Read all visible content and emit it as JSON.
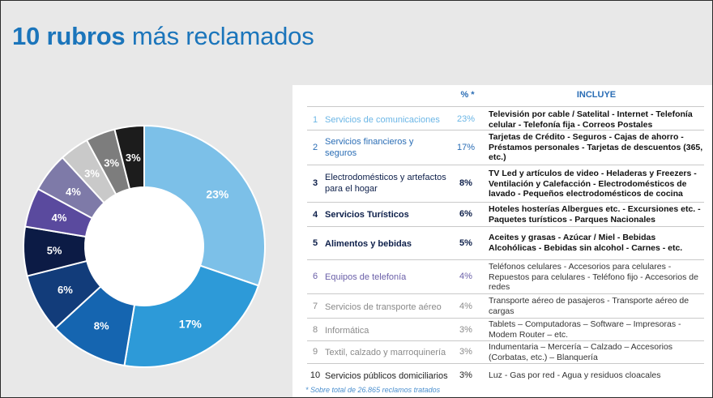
{
  "title": {
    "bold": "10 rubros",
    "rest": "más reclamados"
  },
  "table": {
    "col_pct": "% *",
    "col_incluye": "INCLUYE",
    "rows": [
      {
        "num": "1",
        "rubro": "Servicios de comunicaciones",
        "pct": "23%",
        "incluye": "Televisión por cable / Satelital - Internet - Telefonía celular - Telefonía fija - Correos Postales"
      },
      {
        "num": "2",
        "rubro": "Servicios financieros y seguros",
        "pct": "17%",
        "incluye": "Tarjetas de Crédito - Seguros - Cajas de ahorro - Préstamos personales - Tarjetas de descuentos (365, etc.)"
      },
      {
        "num": "3",
        "rubro": "Electrodomésticos y artefactos para el hogar",
        "pct": "8%",
        "incluye": "TV Led y artículos de video - Heladeras y Freezers - Ventilación y Calefacción - Electrodomésticos de lavado - Pequeños electrodomésticos de cocina"
      },
      {
        "num": "4",
        "rubro": "Servicios Turísticos",
        "pct": "6%",
        "incluye": "Hoteles hosterías Albergues etc. - Excursiones etc. - Paquetes turísticos - Parques Nacionales"
      },
      {
        "num": "5",
        "rubro": "Alimentos y bebidas",
        "pct": "5%",
        "incluye": "Aceites y grasas - Azúcar / Miel - Bebidas Alcohólicas - Bebidas sin alcohol - Carnes - etc."
      },
      {
        "num": "6",
        "rubro": "Equipos de telefonía",
        "pct": "4%",
        "incluye": "Teléfonos celulares - Accesorios para celulares - Repuestos para celulares - Teléfono fijo - Accesorios de redes"
      },
      {
        "num": "7",
        "rubro": "Servicios de transporte aéreo",
        "pct": "4%",
        "incluye": "Transporte aéreo de pasajeros - Transporte aéreo de cargas"
      },
      {
        "num": "8",
        "rubro": "Informática",
        "pct": "3%",
        "incluye": "Tablets – Computadoras – Software – Impresoras - Modem Router – etc."
      },
      {
        "num": "9",
        "rubro": "Textil, calzado y marroquinería",
        "pct": "3%",
        "incluye": "Indumentaria – Mercería – Calzado – Accesorios (Corbatas, etc.) – Blanquería"
      },
      {
        "num": "10",
        "rubro": "Servicios públicos domiciliarios",
        "pct": "3%",
        "incluye": "Luz - Gas por red - Agua y residuos cloacales"
      }
    ]
  },
  "footnote": "* Sobre total de 26.865 reclamos tratados",
  "chart_data": {
    "type": "pie",
    "donut": true,
    "categories": [
      "Servicios de comunicaciones",
      "Servicios financieros y seguros",
      "Electrodomésticos y artefactos para el hogar",
      "Servicios Turísticos",
      "Alimentos y bebidas",
      "Equipos de telefonía",
      "Servicios de transporte aéreo",
      "Informática",
      "Textil, calzado y marroquinería",
      "Servicios públicos domiciliarios"
    ],
    "values": [
      23,
      17,
      8,
      6,
      5,
      4,
      4,
      3,
      3,
      3
    ],
    "labels": [
      "23%",
      "17%",
      "8%",
      "6%",
      "5%",
      "4%",
      "4%",
      "3%",
      "3%",
      "3%"
    ],
    "colors": [
      "#7cc0e8",
      "#2d9ad8",
      "#1565b0",
      "#123c7a",
      "#0c1b45",
      "#5a4a9e",
      "#7e7aa8",
      "#c9c9c9",
      "#7d7d7d",
      "#1c1c1c"
    ],
    "label_colors": [
      "#ffffff",
      "#ffffff",
      "#ffffff",
      "#ffffff",
      "#ffffff",
      "#ffffff",
      "#ffffff",
      "#ffffff",
      "#ffffff",
      "#ffffff"
    ]
  }
}
